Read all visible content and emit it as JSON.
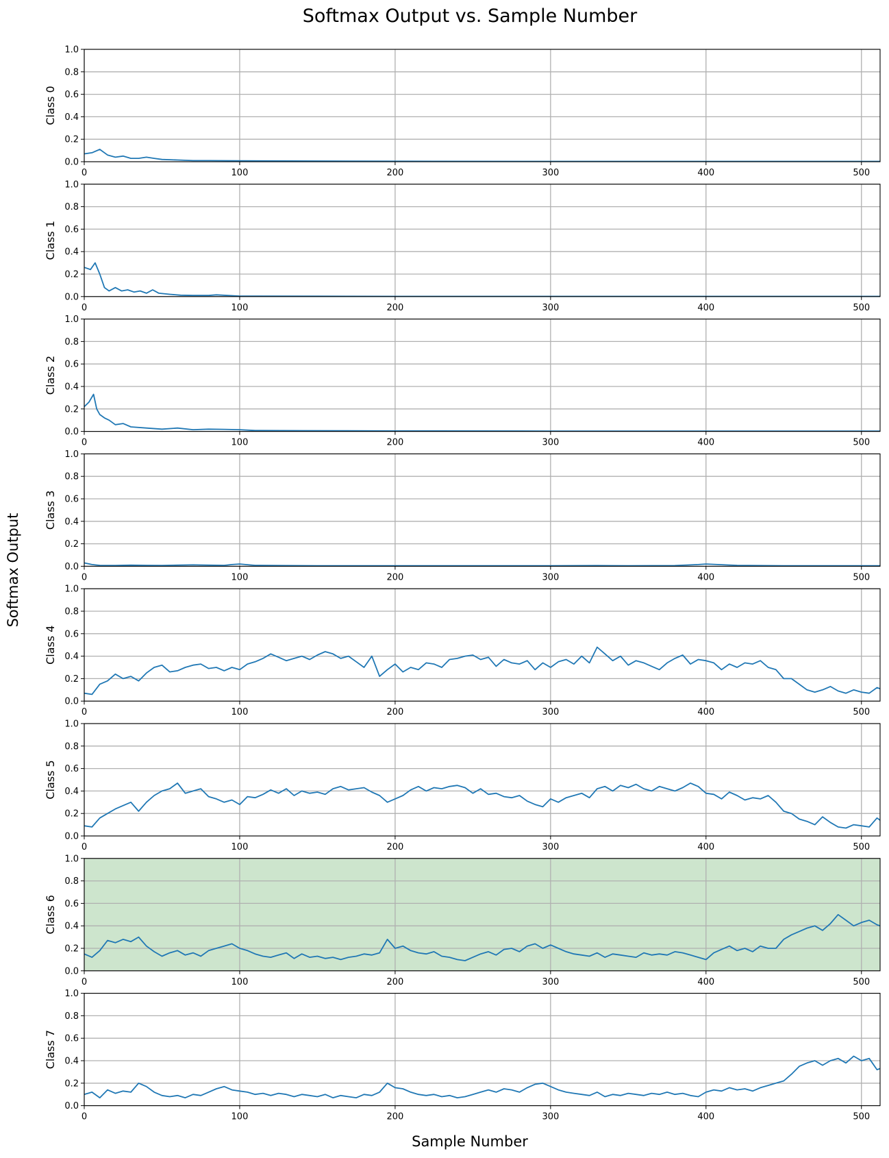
{
  "chart_data": {
    "type": "line",
    "title": "Softmax Output vs. Sample Number",
    "xlabel": "Sample Number",
    "ylabel": "Softmax Output",
    "xlim": [
      0,
      512
    ],
    "ylim": [
      0,
      1
    ],
    "x_ticks": [
      0,
      100,
      200,
      300,
      400,
      500
    ],
    "y_ticks": [
      "0.0",
      "0.2",
      "0.4",
      "0.6",
      "0.8",
      "1.0"
    ],
    "grid": true,
    "line_color": "#1f77b4",
    "highlight_color": "#cde5cd",
    "highlighted_panel": "Class 6",
    "series": [
      {
        "name": "Class 0",
        "x": [
          0,
          5,
          10,
          15,
          20,
          25,
          30,
          35,
          40,
          45,
          50,
          60,
          70,
          80,
          100,
          150,
          200,
          300,
          400,
          512
        ],
        "values": [
          0.07,
          0.08,
          0.11,
          0.06,
          0.04,
          0.05,
          0.03,
          0.03,
          0.04,
          0.03,
          0.02,
          0.015,
          0.01,
          0.01,
          0.008,
          0.006,
          0.004,
          0.003,
          0.003,
          0.003
        ]
      },
      {
        "name": "Class 1",
        "x": [
          0,
          4,
          7,
          10,
          13,
          16,
          20,
          24,
          28,
          32,
          36,
          40,
          44,
          48,
          55,
          62,
          70,
          80,
          85,
          100,
          150,
          200,
          300,
          400,
          512
        ],
        "values": [
          0.26,
          0.24,
          0.3,
          0.2,
          0.08,
          0.05,
          0.08,
          0.05,
          0.06,
          0.04,
          0.05,
          0.03,
          0.06,
          0.03,
          0.02,
          0.012,
          0.01,
          0.01,
          0.015,
          0.004,
          0.003,
          0.002,
          0.002,
          0.002,
          0.002
        ]
      },
      {
        "name": "Class 2",
        "x": [
          0,
          3,
          6,
          8,
          10,
          13,
          16,
          20,
          25,
          30,
          40,
          50,
          60,
          70,
          80,
          90,
          100,
          110,
          140,
          200,
          300,
          400,
          512
        ],
        "values": [
          0.22,
          0.26,
          0.33,
          0.2,
          0.15,
          0.12,
          0.1,
          0.06,
          0.07,
          0.04,
          0.03,
          0.02,
          0.03,
          0.015,
          0.02,
          0.018,
          0.015,
          0.008,
          0.007,
          0.004,
          0.003,
          0.003,
          0.003
        ]
      },
      {
        "name": "Class 3",
        "x": [
          0,
          5,
          10,
          20,
          30,
          40,
          50,
          60,
          70,
          80,
          90,
          95,
          100,
          110,
          130,
          150,
          200,
          250,
          300,
          330,
          350,
          380,
          395,
          400,
          420,
          450,
          500,
          512
        ],
        "values": [
          0.03,
          0.015,
          0.008,
          0.007,
          0.01,
          0.008,
          0.007,
          0.01,
          0.012,
          0.01,
          0.008,
          0.015,
          0.02,
          0.008,
          0.006,
          0.005,
          0.004,
          0.004,
          0.004,
          0.006,
          0.005,
          0.006,
          0.015,
          0.02,
          0.008,
          0.005,
          0.004,
          0.004
        ]
      },
      {
        "name": "Class 4",
        "x": [
          0,
          5,
          10,
          15,
          20,
          25,
          30,
          35,
          40,
          45,
          50,
          55,
          60,
          65,
          70,
          75,
          80,
          85,
          90,
          95,
          100,
          105,
          110,
          115,
          120,
          125,
          130,
          135,
          140,
          145,
          150,
          155,
          160,
          165,
          170,
          175,
          180,
          185,
          190,
          195,
          200,
          205,
          210,
          215,
          220,
          225,
          230,
          235,
          240,
          245,
          250,
          255,
          260,
          265,
          270,
          275,
          280,
          285,
          290,
          295,
          300,
          305,
          310,
          315,
          320,
          325,
          330,
          335,
          340,
          345,
          350,
          355,
          360,
          365,
          370,
          375,
          380,
          385,
          390,
          395,
          400,
          405,
          410,
          415,
          420,
          425,
          430,
          435,
          440,
          445,
          450,
          455,
          460,
          465,
          470,
          475,
          480,
          485,
          490,
          495,
          500,
          505,
          510,
          512
        ],
        "values": [
          0.07,
          0.06,
          0.15,
          0.18,
          0.24,
          0.2,
          0.22,
          0.18,
          0.25,
          0.3,
          0.32,
          0.26,
          0.27,
          0.3,
          0.32,
          0.33,
          0.29,
          0.3,
          0.27,
          0.3,
          0.28,
          0.33,
          0.35,
          0.38,
          0.42,
          0.39,
          0.36,
          0.38,
          0.4,
          0.37,
          0.41,
          0.44,
          0.42,
          0.38,
          0.4,
          0.35,
          0.3,
          0.4,
          0.22,
          0.28,
          0.33,
          0.26,
          0.3,
          0.28,
          0.34,
          0.33,
          0.3,
          0.37,
          0.38,
          0.4,
          0.41,
          0.37,
          0.39,
          0.31,
          0.37,
          0.34,
          0.33,
          0.36,
          0.28,
          0.34,
          0.3,
          0.35,
          0.37,
          0.33,
          0.4,
          0.34,
          0.48,
          0.42,
          0.36,
          0.4,
          0.32,
          0.36,
          0.34,
          0.31,
          0.28,
          0.34,
          0.38,
          0.41,
          0.33,
          0.37,
          0.36,
          0.34,
          0.28,
          0.33,
          0.3,
          0.34,
          0.33,
          0.36,
          0.3,
          0.28,
          0.2,
          0.2,
          0.15,
          0.1,
          0.08,
          0.1,
          0.13,
          0.09,
          0.07,
          0.1,
          0.08,
          0.07,
          0.12,
          0.11
        ]
      },
      {
        "name": "Class 5",
        "x": [
          0,
          5,
          10,
          15,
          20,
          25,
          30,
          35,
          40,
          45,
          50,
          55,
          60,
          65,
          70,
          75,
          80,
          85,
          90,
          95,
          100,
          105,
          110,
          115,
          120,
          125,
          130,
          135,
          140,
          145,
          150,
          155,
          160,
          165,
          170,
          175,
          180,
          185,
          190,
          195,
          200,
          205,
          210,
          215,
          220,
          225,
          230,
          235,
          240,
          245,
          250,
          255,
          260,
          265,
          270,
          275,
          280,
          285,
          290,
          295,
          300,
          305,
          310,
          315,
          320,
          325,
          330,
          335,
          340,
          345,
          350,
          355,
          360,
          365,
          370,
          375,
          380,
          385,
          390,
          395,
          400,
          405,
          410,
          415,
          420,
          425,
          430,
          435,
          440,
          445,
          450,
          455,
          460,
          465,
          470,
          475,
          480,
          485,
          490,
          495,
          500,
          505,
          510,
          512
        ],
        "values": [
          0.09,
          0.08,
          0.16,
          0.2,
          0.24,
          0.27,
          0.3,
          0.22,
          0.3,
          0.36,
          0.4,
          0.42,
          0.47,
          0.38,
          0.4,
          0.42,
          0.35,
          0.33,
          0.3,
          0.32,
          0.28,
          0.35,
          0.34,
          0.37,
          0.41,
          0.38,
          0.42,
          0.36,
          0.4,
          0.38,
          0.39,
          0.37,
          0.42,
          0.44,
          0.41,
          0.42,
          0.43,
          0.39,
          0.36,
          0.3,
          0.33,
          0.36,
          0.41,
          0.44,
          0.4,
          0.43,
          0.42,
          0.44,
          0.45,
          0.43,
          0.38,
          0.42,
          0.37,
          0.38,
          0.35,
          0.34,
          0.36,
          0.31,
          0.28,
          0.26,
          0.33,
          0.3,
          0.34,
          0.36,
          0.38,
          0.34,
          0.42,
          0.44,
          0.4,
          0.45,
          0.43,
          0.46,
          0.42,
          0.4,
          0.44,
          0.42,
          0.4,
          0.43,
          0.47,
          0.44,
          0.38,
          0.37,
          0.33,
          0.39,
          0.36,
          0.32,
          0.34,
          0.33,
          0.36,
          0.3,
          0.22,
          0.2,
          0.15,
          0.13,
          0.1,
          0.17,
          0.12,
          0.08,
          0.07,
          0.1,
          0.09,
          0.08,
          0.16,
          0.14
        ]
      },
      {
        "name": "Class 6",
        "x": [
          0,
          5,
          10,
          15,
          20,
          25,
          30,
          35,
          40,
          45,
          50,
          55,
          60,
          65,
          70,
          75,
          80,
          85,
          90,
          95,
          100,
          105,
          110,
          115,
          120,
          125,
          130,
          135,
          140,
          145,
          150,
          155,
          160,
          165,
          170,
          175,
          180,
          185,
          190,
          195,
          200,
          205,
          210,
          215,
          220,
          225,
          230,
          235,
          240,
          245,
          250,
          255,
          260,
          265,
          270,
          275,
          280,
          285,
          290,
          295,
          300,
          305,
          310,
          315,
          320,
          325,
          330,
          335,
          340,
          345,
          350,
          355,
          360,
          365,
          370,
          375,
          380,
          385,
          390,
          395,
          400,
          405,
          410,
          415,
          420,
          425,
          430,
          435,
          440,
          445,
          450,
          455,
          460,
          465,
          470,
          475,
          480,
          485,
          490,
          495,
          500,
          505,
          510,
          512
        ],
        "values": [
          0.15,
          0.12,
          0.18,
          0.27,
          0.25,
          0.28,
          0.26,
          0.3,
          0.22,
          0.17,
          0.13,
          0.16,
          0.18,
          0.14,
          0.16,
          0.13,
          0.18,
          0.2,
          0.22,
          0.24,
          0.2,
          0.18,
          0.15,
          0.13,
          0.12,
          0.14,
          0.16,
          0.11,
          0.15,
          0.12,
          0.13,
          0.11,
          0.12,
          0.1,
          0.12,
          0.13,
          0.15,
          0.14,
          0.16,
          0.28,
          0.2,
          0.22,
          0.18,
          0.16,
          0.15,
          0.17,
          0.13,
          0.12,
          0.1,
          0.09,
          0.12,
          0.15,
          0.17,
          0.14,
          0.19,
          0.2,
          0.17,
          0.22,
          0.24,
          0.2,
          0.23,
          0.2,
          0.17,
          0.15,
          0.14,
          0.13,
          0.16,
          0.12,
          0.15,
          0.14,
          0.13,
          0.12,
          0.16,
          0.14,
          0.15,
          0.14,
          0.17,
          0.16,
          0.14,
          0.12,
          0.1,
          0.16,
          0.19,
          0.22,
          0.18,
          0.2,
          0.17,
          0.22,
          0.2,
          0.2,
          0.28,
          0.32,
          0.35,
          0.38,
          0.4,
          0.36,
          0.42,
          0.5,
          0.45,
          0.4,
          0.43,
          0.45,
          0.41,
          0.4
        ]
      },
      {
        "name": "Class 7",
        "x": [
          0,
          5,
          10,
          15,
          20,
          25,
          30,
          35,
          40,
          45,
          50,
          55,
          60,
          65,
          70,
          75,
          80,
          85,
          90,
          95,
          100,
          105,
          110,
          115,
          120,
          125,
          130,
          135,
          140,
          145,
          150,
          155,
          160,
          165,
          170,
          175,
          180,
          185,
          190,
          195,
          200,
          205,
          210,
          215,
          220,
          225,
          230,
          235,
          240,
          245,
          250,
          255,
          260,
          265,
          270,
          275,
          280,
          285,
          290,
          295,
          300,
          305,
          310,
          315,
          320,
          325,
          330,
          335,
          340,
          345,
          350,
          355,
          360,
          365,
          370,
          375,
          380,
          385,
          390,
          395,
          400,
          405,
          410,
          415,
          420,
          425,
          430,
          435,
          440,
          445,
          450,
          455,
          460,
          465,
          470,
          475,
          480,
          485,
          490,
          495,
          500,
          505,
          510,
          512
        ],
        "values": [
          0.1,
          0.12,
          0.07,
          0.14,
          0.11,
          0.13,
          0.12,
          0.2,
          0.17,
          0.12,
          0.09,
          0.08,
          0.09,
          0.07,
          0.1,
          0.09,
          0.12,
          0.15,
          0.17,
          0.14,
          0.13,
          0.12,
          0.1,
          0.11,
          0.09,
          0.11,
          0.1,
          0.08,
          0.1,
          0.09,
          0.08,
          0.1,
          0.07,
          0.09,
          0.08,
          0.07,
          0.1,
          0.09,
          0.12,
          0.2,
          0.16,
          0.15,
          0.12,
          0.1,
          0.09,
          0.1,
          0.08,
          0.09,
          0.07,
          0.08,
          0.1,
          0.12,
          0.14,
          0.12,
          0.15,
          0.14,
          0.12,
          0.16,
          0.19,
          0.2,
          0.17,
          0.14,
          0.12,
          0.11,
          0.1,
          0.09,
          0.12,
          0.08,
          0.1,
          0.09,
          0.11,
          0.1,
          0.09,
          0.11,
          0.1,
          0.12,
          0.1,
          0.11,
          0.09,
          0.08,
          0.12,
          0.14,
          0.13,
          0.16,
          0.14,
          0.15,
          0.13,
          0.16,
          0.18,
          0.2,
          0.22,
          0.28,
          0.35,
          0.38,
          0.4,
          0.36,
          0.4,
          0.42,
          0.38,
          0.44,
          0.4,
          0.42,
          0.32,
          0.33
        ]
      }
    ]
  }
}
